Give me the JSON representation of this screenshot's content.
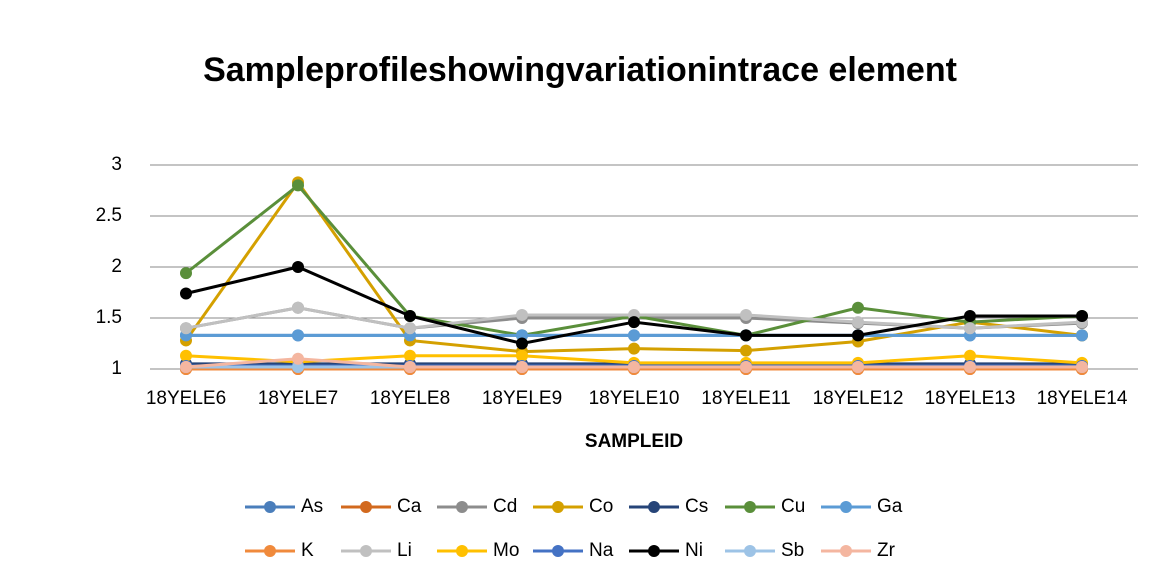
{
  "chart_data": {
    "type": "line",
    "title": "Sampleprofileshowingvariationintrace element",
    "x_label": "SAMPLEID",
    "categories": [
      "18YELE6",
      "18YELE7",
      "18YELE8",
      "18YELE9",
      "18YELE10",
      "18YELE11",
      "18YELE12",
      "18YELE13",
      "18YELE14"
    ],
    "ylim": [
      1,
      3
    ],
    "yticks": [
      1,
      1.5,
      2,
      2.5,
      3
    ],
    "grid": true,
    "legend": "bottom",
    "series": [
      {
        "name": "As",
        "color": "#4a7ebb",
        "values": [
          1.33,
          1.33,
          1.33,
          1.33,
          1.33,
          1.33,
          1.33,
          1.33,
          1.33
        ]
      },
      {
        "name": "Ca",
        "color": "#d2691e",
        "values": [
          1.0,
          1.0,
          1.0,
          1.0,
          1.0,
          1.0,
          1.0,
          1.0,
          1.0
        ]
      },
      {
        "name": "Cd",
        "color": "#8c8c8c",
        "values": [
          1.4,
          1.6,
          1.4,
          1.5,
          1.5,
          1.5,
          1.45,
          1.4,
          1.45
        ]
      },
      {
        "name": "Co",
        "color": "#d4a000",
        "values": [
          1.28,
          2.83,
          1.28,
          1.17,
          1.2,
          1.18,
          1.27,
          1.46,
          1.33
        ]
      },
      {
        "name": "Cs",
        "color": "#264478",
        "values": [
          1.05,
          1.05,
          1.05,
          1.05,
          1.05,
          1.05,
          1.05,
          1.05,
          1.05
        ]
      },
      {
        "name": "Cu",
        "color": "#5a8f3a",
        "values": [
          1.94,
          2.8,
          1.52,
          1.33,
          1.52,
          1.33,
          1.6,
          1.46,
          1.52
        ]
      },
      {
        "name": "Ga",
        "color": "#5b9bd5",
        "values": [
          1.33,
          1.33,
          1.33,
          1.33,
          1.33,
          1.33,
          1.33,
          1.33,
          1.33
        ]
      },
      {
        "name": "K",
        "color": "#f08a3c",
        "values": [
          1.0,
          1.0,
          1.0,
          1.0,
          1.0,
          1.0,
          1.0,
          1.0,
          1.0
        ]
      },
      {
        "name": "Li",
        "color": "#c0c0c0",
        "values": [
          1.4,
          1.6,
          1.4,
          1.53,
          1.53,
          1.53,
          1.46,
          1.4,
          1.46
        ]
      },
      {
        "name": "Mo",
        "color": "#ffc000",
        "values": [
          1.13,
          1.07,
          1.13,
          1.13,
          1.06,
          1.06,
          1.06,
          1.13,
          1.06
        ]
      },
      {
        "name": "Na",
        "color": "#4472c4",
        "values": [
          1.03,
          1.03,
          1.03,
          1.03,
          1.03,
          1.03,
          1.03,
          1.03,
          1.03
        ]
      },
      {
        "name": "Ni",
        "color": "#000000",
        "values": [
          1.74,
          2.0,
          1.52,
          1.25,
          1.46,
          1.33,
          1.33,
          1.52,
          1.52
        ]
      },
      {
        "name": "Sb",
        "color": "#9dc3e6",
        "values": [
          1.02,
          1.02,
          1.02,
          1.02,
          1.02,
          1.02,
          1.02,
          1.02,
          1.02
        ]
      },
      {
        "name": "Zr",
        "color": "#f4b6a0",
        "values": [
          1.02,
          1.1,
          1.02,
          1.02,
          1.02,
          1.02,
          1.02,
          1.02,
          1.02
        ]
      }
    ]
  }
}
